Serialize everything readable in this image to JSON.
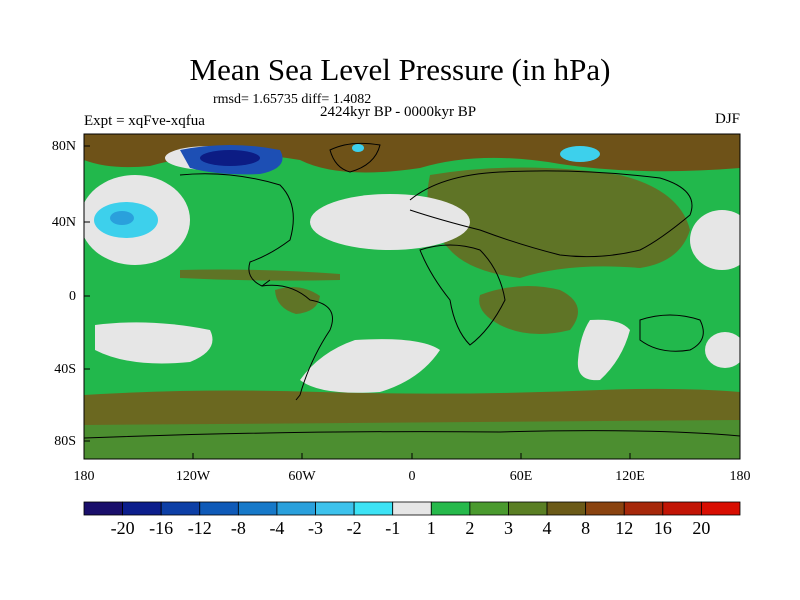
{
  "title": "Mean Sea Level Pressure (in hPa)",
  "stats": "rmsd= 1.65735 diff= 1.4082",
  "period": "2424kyr BP - 0000kyr BP",
  "experiment": "Expt = xqFve-xqfua",
  "season": "DJF",
  "lat_labels": [
    "80N",
    "40N",
    "0",
    "40S",
    "80S"
  ],
  "lon_labels": [
    "180",
    "120W",
    "60W",
    "0",
    "60E",
    "120E",
    "180"
  ],
  "colorbar": {
    "labels": [
      "-20",
      "-16",
      "-12",
      "-8",
      "-4",
      "-3",
      "-2",
      "-1",
      "1",
      "2",
      "3",
      "4",
      "8",
      "12",
      "16",
      "20"
    ],
    "colors": [
      "#1a0f6b",
      "#0c1e8c",
      "#0d3fa6",
      "#0f5ab8",
      "#1779c9",
      "#2aa0dc",
      "#3dc2ec",
      "#3de3f5",
      "#e6e6e6",
      "#26b94b",
      "#4a9a2e",
      "#5a7f24",
      "#6b5a18",
      "#8a4310",
      "#a6280a",
      "#c21505",
      "#d80e02"
    ]
  },
  "palette": {
    "green": "#22b84c",
    "dark_green": "#4c8e30",
    "olive": "#6b6820",
    "brown": "#6e5218",
    "gray": "#e6e6e6",
    "cyan": "#3dd0ec",
    "blue": "#1d4fb4",
    "navy": "#0c1c84"
  }
}
